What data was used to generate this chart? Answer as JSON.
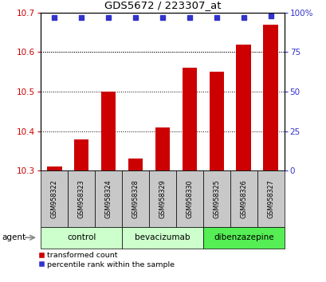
{
  "title": "GDS5672 / 223307_at",
  "samples": [
    "GSM958322",
    "GSM958323",
    "GSM958324",
    "GSM958328",
    "GSM958329",
    "GSM958330",
    "GSM958325",
    "GSM958326",
    "GSM958327"
  ],
  "bar_values": [
    10.31,
    10.38,
    10.5,
    10.33,
    10.41,
    10.56,
    10.55,
    10.62,
    10.67
  ],
  "percentile_values": [
    97,
    97,
    97,
    97,
    97,
    97,
    97,
    97,
    98
  ],
  "ylim": [
    10.3,
    10.7
  ],
  "yticks": [
    10.3,
    10.4,
    10.5,
    10.6,
    10.7
  ],
  "right_yticks": [
    0,
    25,
    50,
    75,
    100
  ],
  "right_ylim": [
    0,
    100
  ],
  "bar_color": "#cc0000",
  "dot_color": "#3333cc",
  "group_labels": [
    "control",
    "bevacizumab",
    "dibenzazepine"
  ],
  "group_starts": [
    0,
    3,
    6
  ],
  "group_ends": [
    3,
    6,
    9
  ],
  "group_colors": [
    "#ccffcc",
    "#ccffcc",
    "#55ee55"
  ],
  "bar_width": 0.55,
  "legend_red_label": "transformed count",
  "legend_blue_label": "percentile rank within the sample",
  "agent_label": "agent",
  "background_color": "#ffffff",
  "tick_color_left": "#cc0000",
  "tick_color_right": "#3333cc",
  "sample_box_color": "#c8c8c8"
}
